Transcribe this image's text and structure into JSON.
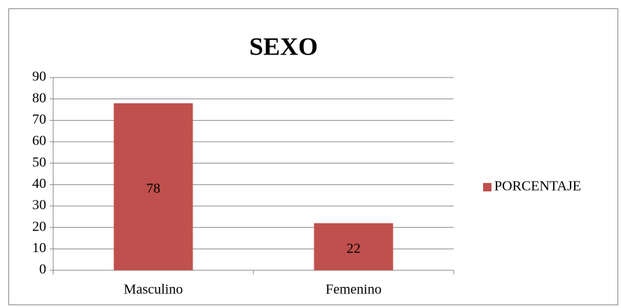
{
  "chart_data": {
    "type": "bar",
    "title": "SEXO",
    "categories": [
      "Masculino",
      "Femenino"
    ],
    "series": [
      {
        "name": "PORCENTAJE",
        "color": "#c0504d",
        "values": [
          78,
          22
        ]
      }
    ],
    "ylim": [
      0,
      90
    ],
    "yticks": [
      0,
      10,
      20,
      30,
      40,
      50,
      60,
      70,
      80,
      90
    ],
    "grid": true,
    "legend": "right",
    "data_labels": true
  }
}
